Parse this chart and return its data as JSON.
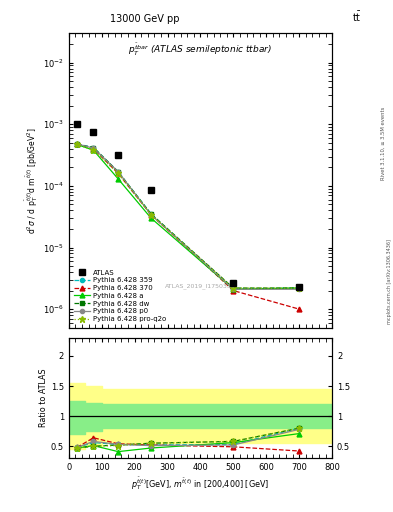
{
  "atlas_x": [
    25,
    75,
    150,
    250,
    500,
    700
  ],
  "atlas_y": [
    0.001,
    0.00075,
    0.00032,
    8.5e-05,
    2.7e-06,
    2.3e-06
  ],
  "py359_x": [
    25,
    75,
    150,
    250,
    500,
    700
  ],
  "py359_y": [
    0.00048,
    0.00042,
    0.00017,
    3.5e-05,
    2.1e-06,
    2.2e-06
  ],
  "py370_x": [
    25,
    75,
    150,
    250,
    500,
    700
  ],
  "py370_y": [
    0.00048,
    0.0004,
    0.00016,
    3.4e-05,
    2e-06,
    1e-06
  ],
  "pya_x": [
    25,
    75,
    150,
    250,
    500,
    700
  ],
  "pya_y": [
    0.00047,
    0.00038,
    0.00013,
    3e-05,
    2.1e-06,
    2.2e-06
  ],
  "pydw_x": [
    25,
    75,
    150,
    250,
    500,
    700
  ],
  "pydw_y": [
    0.00047,
    0.00042,
    0.00017,
    3.5e-05,
    2.2e-06,
    2.2e-06
  ],
  "pyp0_x": [
    25,
    75,
    150,
    250,
    500,
    700
  ],
  "pyp0_y": [
    0.00048,
    0.00041,
    0.00017,
    3.4e-05,
    2.1e-06,
    2.1e-06
  ],
  "pyproq2o_x": [
    25,
    75,
    150,
    250,
    500,
    700
  ],
  "pyproq2o_y": [
    0.00047,
    0.00038,
    0.00016,
    3.4e-05,
    2.2e-06,
    2.2e-06
  ],
  "ratio_py359_x": [
    25,
    75,
    150,
    250,
    500,
    700
  ],
  "ratio_py359_y": [
    0.48,
    0.56,
    0.53,
    0.52,
    0.53,
    0.8
  ],
  "ratio_py370_x": [
    25,
    75,
    150,
    250,
    500,
    700
  ],
  "ratio_py370_y": [
    0.48,
    0.64,
    0.54,
    0.52,
    0.49,
    0.42
  ],
  "ratio_pya_x": [
    25,
    75,
    150,
    250,
    500,
    700
  ],
  "ratio_pya_y": [
    0.47,
    0.51,
    0.41,
    0.47,
    0.56,
    0.71
  ],
  "ratio_pydw_x": [
    25,
    75,
    150,
    250,
    500,
    700
  ],
  "ratio_pydw_y": [
    0.47,
    0.5,
    0.52,
    0.55,
    0.58,
    0.8
  ],
  "ratio_pyp0_x": [
    25,
    75,
    150,
    250,
    500,
    700
  ],
  "ratio_pyp0_y": [
    0.48,
    0.58,
    0.53,
    0.51,
    0.52,
    0.78
  ],
  "ratio_pyproq2o_x": [
    25,
    75,
    150,
    250,
    500,
    700
  ],
  "ratio_pyproq2o_y": [
    0.47,
    0.5,
    0.51,
    0.55,
    0.58,
    0.8
  ],
  "color_py359": "#00bbbb",
  "color_py370": "#cc0000",
  "color_pya": "#00cc00",
  "color_pydw": "#007700",
  "color_pyp0": "#888888",
  "color_pyproq2o": "#88bb00",
  "band_green_lo": 0.8,
  "band_green_hi": 1.2,
  "band_yellow_lo": 0.55,
  "band_yellow_hi": 1.45,
  "band_green_lo_b0": 0.7,
  "band_green_hi_b0": 1.25,
  "band_yellow_lo_b0": 0.45,
  "band_yellow_hi_b0": 1.55,
  "band_green_lo_b1": 0.75,
  "band_green_hi_b1": 1.22,
  "band_yellow_lo_b1": 0.5,
  "band_yellow_hi_b1": 1.5,
  "xlim": [
    0,
    800
  ],
  "ylim_main": [
    5e-07,
    0.03
  ],
  "ylim_ratio": [
    0.3,
    2.3
  ]
}
